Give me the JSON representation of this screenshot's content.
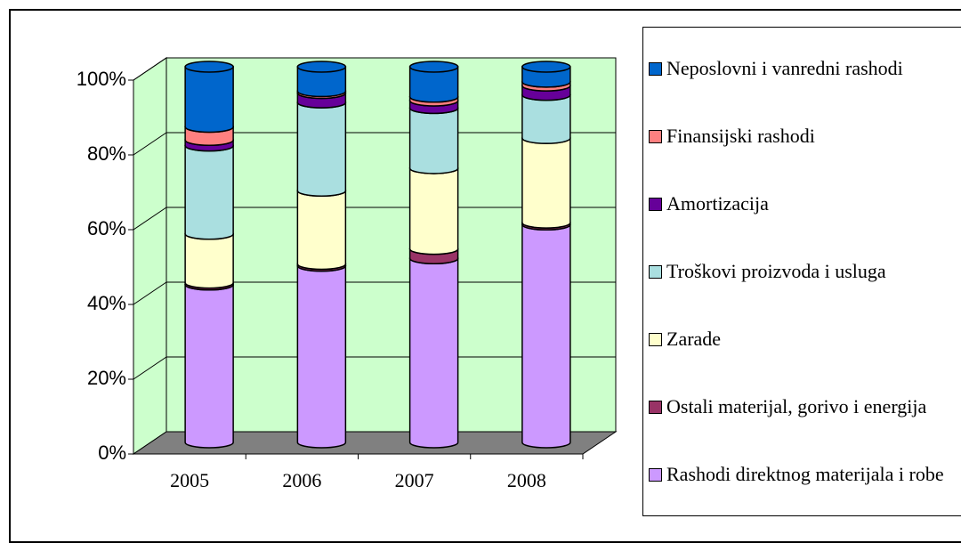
{
  "chart_data": {
    "type": "bar3d_stacked_percent",
    "categories": [
      "2005",
      "2006",
      "2007",
      "2008"
    ],
    "series": [
      {
        "name": "Rashodi direktnog materijala i robe",
        "color": "#cc99ff",
        "values": [
          42,
          47,
          49,
          58
        ]
      },
      {
        "name": "Ostali materijal, gorivo i energija",
        "color": "#993366",
        "values": [
          0.5,
          0.5,
          2.5,
          0.5
        ]
      },
      {
        "name": "Zarade",
        "color": "#ffffcc",
        "values": [
          13,
          19.5,
          21.5,
          22.5
        ]
      },
      {
        "name": "Troškovi proizvoda i usluga",
        "color": "#aadfe0",
        "values": [
          23.5,
          23.5,
          16,
          11.5
        ]
      },
      {
        "name": "Amortizacija",
        "color": "#660099",
        "values": [
          1.5,
          2.5,
          2,
          2.5
        ]
      },
      {
        "name": "Finansijski rashodi",
        "color": "#ff8080",
        "values": [
          3.5,
          0.5,
          1,
          1
        ]
      },
      {
        "name": "Neposlovni i vanredni rashodi",
        "color": "#0066cc",
        "values": [
          16,
          6.5,
          8,
          4
        ]
      }
    ],
    "ylim": [
      0,
      100
    ],
    "yticks": [
      {
        "value": 0,
        "label": "0%"
      },
      {
        "value": 20,
        "label": "20%"
      },
      {
        "value": 40,
        "label": "40%"
      },
      {
        "value": 60,
        "label": "60%"
      },
      {
        "value": 80,
        "label": "80%"
      },
      {
        "value": 100,
        "label": "100%"
      }
    ],
    "grid": true
  }
}
